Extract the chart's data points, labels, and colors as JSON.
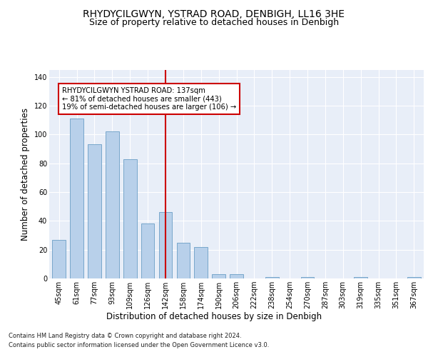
{
  "title1": "RHYDYCILGWYN, YSTRAD ROAD, DENBIGH, LL16 3HE",
  "title2": "Size of property relative to detached houses in Denbigh",
  "xlabel": "Distribution of detached houses by size in Denbigh",
  "ylabel": "Number of detached properties",
  "categories": [
    "45sqm",
    "61sqm",
    "77sqm",
    "93sqm",
    "109sqm",
    "126sqm",
    "142sqm",
    "158sqm",
    "174sqm",
    "190sqm",
    "206sqm",
    "222sqm",
    "238sqm",
    "254sqm",
    "270sqm",
    "287sqm",
    "303sqm",
    "319sqm",
    "335sqm",
    "351sqm",
    "367sqm"
  ],
  "values": [
    27,
    111,
    93,
    102,
    83,
    38,
    46,
    25,
    22,
    3,
    3,
    0,
    1,
    0,
    1,
    0,
    0,
    1,
    0,
    0,
    1
  ],
  "bar_color": "#b8d0ea",
  "bar_edge_color": "#6a9ec5",
  "bar_width": 0.75,
  "vline_x": 6.0,
  "vline_color": "#cc0000",
  "annotation_lines": [
    "RHYDYCILGWYN YSTRAD ROAD: 137sqm",
    "← 81% of detached houses are smaller (443)",
    "19% of semi-detached houses are larger (106) →"
  ],
  "ylim": [
    0,
    145
  ],
  "yticks": [
    0,
    20,
    40,
    60,
    80,
    100,
    120,
    140
  ],
  "footer_line1": "Contains HM Land Registry data © Crown copyright and database right 2024.",
  "footer_line2": "Contains public sector information licensed under the Open Government Licence v3.0.",
  "bg_color": "#e8eef8",
  "title1_fontsize": 10,
  "title2_fontsize": 9,
  "tick_fontsize": 7,
  "ylabel_fontsize": 8.5,
  "xlabel_fontsize": 8.5,
  "footer_fontsize": 6.0
}
